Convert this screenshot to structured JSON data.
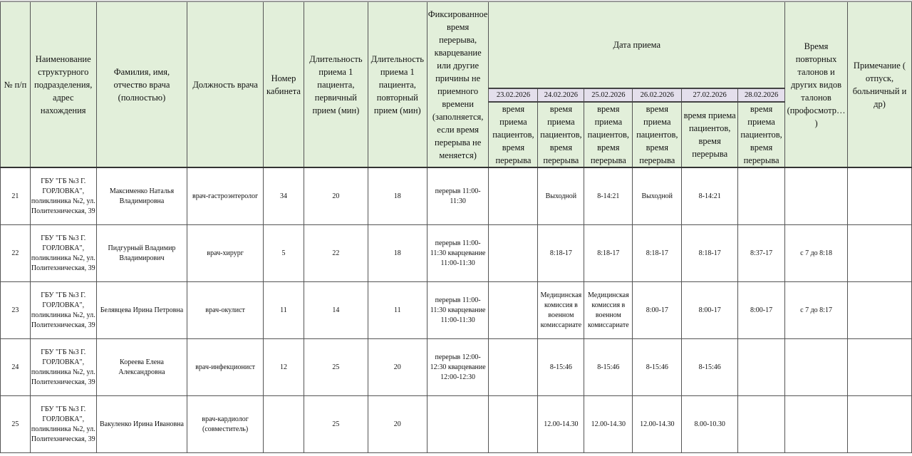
{
  "header": {
    "num": "№ п/п",
    "unit": "Наименование структурного подразделения, адрес нахождения",
    "name": "Фамилия, имя, отчество врача (полностью)",
    "position": "Должность врача",
    "cabinet": "Номер кабинета",
    "dur_primary": "Длительность приема 1 пациента, первичный прием (мин)",
    "dur_repeat": "Длительность приема 1 пациента, повторный прием (мин)",
    "break": "Фиксированное время перерыва, кварцевание или другие причины не приемного времени (заполняется, если время перерыва не меняется)",
    "date_group": "Дата приема",
    "dates": [
      "23.02.2026",
      "24.02.2026",
      "25.02.2026",
      "26.02.2026",
      "27.02.2026",
      "28.02.2026"
    ],
    "date_sub": [
      "время приема пациентов, время перерыва",
      "время приема пациентов, время перерыва",
      "время приема пациентов, время перерыва",
      "время приема пациентов, время перерыва",
      "время приема пациентов, время перерыва",
      "время приема пациентов, время перерыва"
    ],
    "repeat_tickets": "Время повторных талонов и других видов талонов (профосмотр… )",
    "note": "Примечание ( отпуск, больничный и др)"
  },
  "rows": [
    {
      "num": "21",
      "unit": "ГБУ \"ГБ №3 Г. ГОРЛОВКА\", поликлиника №2, ул. Политехническая, 39",
      "name": "Максименко Наталья Владимировна",
      "position": "врач-гастроэнтеролог",
      "cabinet": "34",
      "dur_primary": "20",
      "dur_repeat": "18",
      "break": "перерыв 11:00-11:30",
      "days": [
        "",
        "Выходной",
        "8-14:21",
        "Выходной",
        "8-14:21",
        ""
      ],
      "repeat_tickets": "",
      "note": ""
    },
    {
      "num": "22",
      "unit": "ГБУ \"ГБ №3 Г. ГОРЛОВКА\", поликлиника №2, ул. Политехническая, 39",
      "name": "Пидгурный Владимир Владимирович",
      "position": "врач-хирург",
      "cabinet": "5",
      "dur_primary": "22",
      "dur_repeat": "18",
      "break": "перерыв 11:00-11:30 кварцевание 11:00-11:30",
      "days": [
        "",
        "8:18-17",
        "8:18-17",
        "8:18-17",
        "8:18-17",
        "8:37-17"
      ],
      "repeat_tickets": "с 7 до 8:18",
      "note": ""
    },
    {
      "num": "23",
      "unit": "ГБУ \"ГБ №3 Г. ГОРЛОВКА\", поликлиника №2, ул. Политехническая, 39",
      "name": "Белявцева Ирина Петровна",
      "position": "врач-окулист",
      "cabinet": "11",
      "dur_primary": "14",
      "dur_repeat": "11",
      "break": "перерыв 11:00-11:30 кварцевание 11:00-11:30",
      "days": [
        "",
        "Медицинская комиссия в военном комиссариате",
        "Медицинская комиссия в военном комиссариате",
        "8:00-17",
        "8:00-17",
        "8:00-17"
      ],
      "repeat_tickets": "с 7 до 8:17",
      "note": ""
    },
    {
      "num": "24",
      "unit": "ГБУ \"ГБ №3 Г. ГОРЛОВКА\", поликлиника №2, ул. Политехническая, 39",
      "name": "Кореева Елена Александровна",
      "position": "врач-инфекционист",
      "cabinet": "12",
      "dur_primary": "25",
      "dur_repeat": "20",
      "break": "перерыв 12:00-12:30 кварцевание 12:00-12:30",
      "days": [
        "",
        "8-15:46",
        "8-15:46",
        "8-15:46",
        "8-15:46",
        ""
      ],
      "repeat_tickets": "",
      "note": ""
    },
    {
      "num": "25",
      "unit": "ГБУ \"ГБ №3 Г. ГОРЛОВКА\", поликлиника №2, ул. Политехническая, 39",
      "name": "Вакуленко Ирина Ивановна",
      "position": "врач-кардиолог (совместитель)",
      "cabinet": "",
      "dur_primary": "25",
      "dur_repeat": "20",
      "break": "",
      "days": [
        "",
        "12.00-14.30",
        "12.00-14.30",
        "12.00-14.30",
        "8.00-10.30",
        ""
      ],
      "repeat_tickets": "",
      "note": ""
    }
  ]
}
